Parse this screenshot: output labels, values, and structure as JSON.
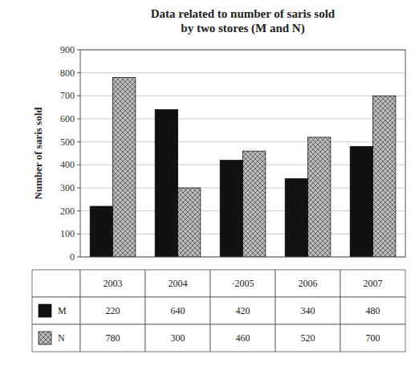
{
  "chart_data": {
    "type": "bar",
    "title": "Data related to number of saris sold\nby two stores (M and N)",
    "categories": [
      "2003",
      "2004",
      "·2005",
      "2006",
      "2007"
    ],
    "series": [
      {
        "name": "M",
        "color": "#111111",
        "values": [
          220,
          640,
          420,
          340,
          480
        ]
      },
      {
        "name": "N",
        "color": "#bbbbbb",
        "values": [
          780,
          300,
          460,
          520,
          700
        ]
      }
    ],
    "ylabel": "Number of saris sold",
    "ylim": [
      0,
      900
    ],
    "yticks": [
      0,
      100,
      200,
      300,
      400,
      500,
      600,
      700,
      800,
      900
    ],
    "grid": true
  }
}
